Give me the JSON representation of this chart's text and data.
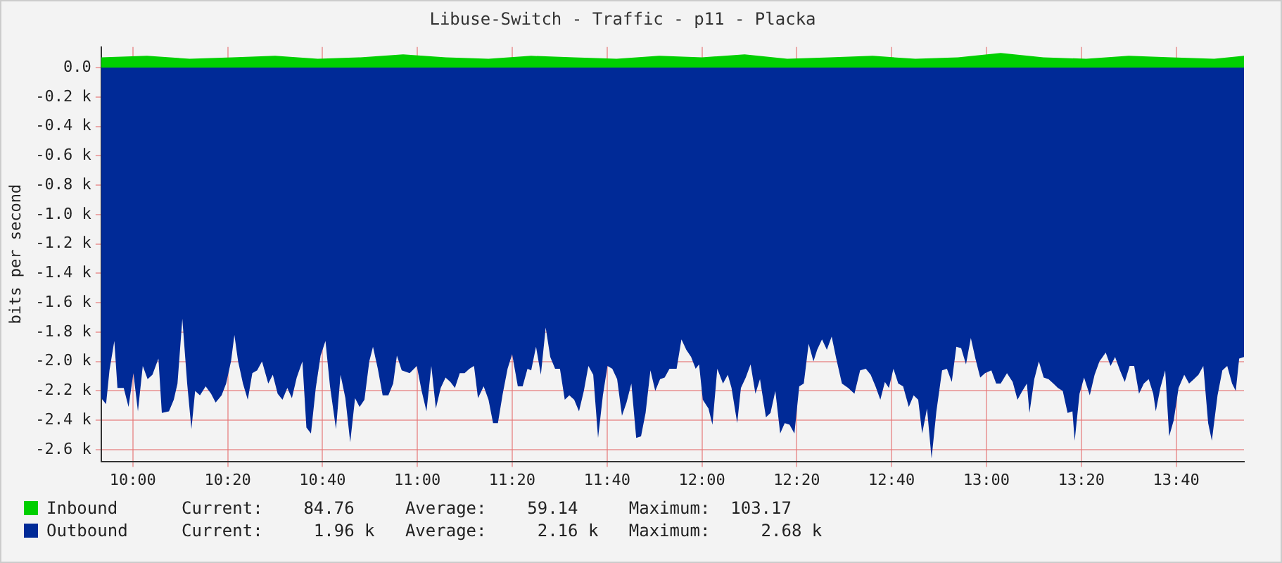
{
  "chart_data": {
    "type": "area",
    "title": "Libuse-Switch - Traffic - p11 - Placka",
    "ylabel": "bits per second",
    "legend": "bottom",
    "grid": true,
    "marker": "none",
    "xlim": [
      9.889,
      13.905
    ],
    "xticks": [
      {
        "value": 10,
        "label": "10:00"
      },
      {
        "value": 10.3333,
        "label": "10:20"
      },
      {
        "value": 10.6667,
        "label": "10:40"
      },
      {
        "value": 11,
        "label": "11:00"
      },
      {
        "value": 11.3333,
        "label": "11:20"
      },
      {
        "value": 11.6667,
        "label": "11:40"
      },
      {
        "value": 12,
        "label": "12:00"
      },
      {
        "value": 12.3333,
        "label": "12:20"
      },
      {
        "value": 12.6667,
        "label": "12:40"
      },
      {
        "value": 13,
        "label": "13:00"
      },
      {
        "value": 13.3333,
        "label": "13:20"
      },
      {
        "value": 13.6667,
        "label": "13:40"
      }
    ],
    "ylim": [
      -2.68,
      0.14
    ],
    "yticks": [
      {
        "value": 0,
        "label": "0.0"
      },
      {
        "value": -0.2,
        "label": "-0.2 k"
      },
      {
        "value": -0.4,
        "label": "-0.4 k"
      },
      {
        "value": -0.6,
        "label": "-0.6 k"
      },
      {
        "value": -0.8,
        "label": "-0.8 k"
      },
      {
        "value": -1,
        "label": "-1.0 k"
      },
      {
        "value": -1.2,
        "label": "-1.2 k"
      },
      {
        "value": -1.4,
        "label": "-1.4 k"
      },
      {
        "value": -1.6,
        "label": "-1.6 k"
      },
      {
        "value": -1.8,
        "label": "-1.8 k"
      },
      {
        "value": -2,
        "label": "-2.0 k"
      },
      {
        "value": -2.2,
        "label": "-2.2 k"
      },
      {
        "value": -2.4,
        "label": "-2.4 k"
      },
      {
        "value": -2.6,
        "label": "-2.6 k"
      }
    ],
    "annotations": [
      "Current:    84.76     Average:    59.14     Maximum:  103.17",
      "Current:     1.96 k   Average:     2.16 k   Maximum:     2.68 k"
    ],
    "series": [
      {
        "name": "Inbound",
        "color": "#00cf00",
        "x": [
          9.889,
          10.05,
          10.2,
          10.35,
          10.5,
          10.65,
          10.8,
          10.95,
          11.1,
          11.25,
          11.4,
          11.55,
          11.7,
          11.85,
          12.0,
          12.15,
          12.3,
          12.45,
          12.6,
          12.75,
          12.9,
          13.05,
          13.2,
          13.35,
          13.5,
          13.65,
          13.8,
          13.905
        ],
        "values": [
          0.07,
          0.08,
          0.06,
          0.07,
          0.08,
          0.06,
          0.07,
          0.09,
          0.07,
          0.06,
          0.08,
          0.07,
          0.06,
          0.08,
          0.07,
          0.09,
          0.06,
          0.07,
          0.08,
          0.06,
          0.07,
          0.1,
          0.07,
          0.06,
          0.08,
          0.07,
          0.06,
          0.08
        ]
      },
      {
        "name": "Outbound",
        "color": "#002a97",
        "x": [
          9.889,
          9.906,
          9.918,
          9.935,
          9.946,
          9.968,
          9.985,
          10.002,
          10.018,
          10.035,
          10.052,
          10.069,
          10.09,
          10.102,
          10.127,
          10.144,
          10.157,
          10.174,
          10.191,
          10.206,
          10.219,
          10.236,
          10.256,
          10.275,
          10.291,
          10.312,
          10.328,
          10.345,
          10.357,
          10.37,
          10.387,
          10.404,
          10.42,
          10.437,
          10.454,
          10.476,
          10.492,
          10.509,
          10.526,
          10.543,
          10.559,
          10.576,
          10.596,
          10.61,
          10.626,
          10.643,
          10.66,
          10.677,
          10.693,
          10.714,
          10.73,
          10.747,
          10.764,
          10.781,
          10.797,
          10.814,
          10.831,
          10.844,
          10.861,
          10.878,
          10.898,
          10.915,
          10.928,
          10.945,
          10.973,
          10.998,
          11.015,
          11.032,
          11.049,
          11.065,
          11.082,
          11.099,
          11.116,
          11.132,
          11.149,
          11.166,
          11.183,
          11.199,
          11.213,
          11.233,
          11.25,
          11.266,
          11.283,
          11.3,
          11.317,
          11.333,
          11.353,
          11.37,
          11.387,
          11.4,
          11.417,
          11.434,
          11.451,
          11.467,
          11.484,
          11.501,
          11.518,
          11.534,
          11.551,
          11.568,
          11.585,
          11.601,
          11.618,
          11.635,
          11.652,
          11.668,
          11.685,
          11.702,
          11.719,
          11.735,
          11.752,
          11.769,
          11.786,
          11.802,
          11.819,
          11.836,
          11.853,
          11.869,
          11.886,
          11.911,
          11.928,
          11.945,
          11.962,
          11.978,
          11.99,
          12.003,
          12.023,
          12.037,
          12.054,
          12.074,
          12.091,
          12.104,
          12.124,
          12.137,
          12.154,
          12.171,
          12.188,
          12.204,
          12.225,
          12.241,
          12.258,
          12.275,
          12.291,
          12.308,
          12.325,
          12.342,
          12.358,
          12.375,
          12.392,
          12.405,
          12.422,
          12.439,
          12.456,
          12.472,
          12.492,
          12.514,
          12.536,
          12.556,
          12.576,
          12.593,
          12.61,
          12.627,
          12.643,
          12.657,
          12.673,
          12.69,
          12.707,
          12.727,
          12.744,
          12.76,
          12.774,
          12.791,
          12.807,
          12.824,
          12.844,
          12.861,
          12.878,
          12.894,
          12.911,
          12.928,
          12.945,
          12.961,
          12.978,
          12.995,
          13.017,
          13.034,
          13.05,
          13.072,
          13.092,
          13.109,
          13.126,
          13.142,
          13.151,
          13.168,
          13.184,
          13.201,
          13.218,
          13.235,
          13.251,
          13.268,
          13.285,
          13.302,
          13.31,
          13.327,
          13.343,
          13.363,
          13.38,
          13.397,
          13.419,
          13.436,
          13.452,
          13.469,
          13.486,
          13.503,
          13.519,
          13.536,
          13.553,
          13.57,
          13.586,
          13.595,
          13.611,
          13.628,
          13.642,
          13.658,
          13.675,
          13.695,
          13.712,
          13.729,
          13.745,
          13.762,
          13.779,
          13.792,
          13.812,
          13.829,
          13.846,
          13.863,
          13.876,
          13.888,
          13.905
        ],
        "values": [
          -2.25,
          -2.29,
          -2.06,
          -1.86,
          -2.18,
          -2.18,
          -2.31,
          -2.08,
          -2.34,
          -2.03,
          -2.12,
          -2.09,
          -1.98,
          -2.35,
          -2.34,
          -2.26,
          -2.15,
          -1.71,
          -2.15,
          -2.46,
          -2.2,
          -2.23,
          -2.17,
          -2.22,
          -2.28,
          -2.23,
          -2.15,
          -2.0,
          -1.82,
          -2.0,
          -2.15,
          -2.26,
          -2.08,
          -2.06,
          -2.0,
          -2.15,
          -2.09,
          -2.22,
          -2.26,
          -2.18,
          -2.25,
          -2.11,
          -2.0,
          -2.45,
          -2.49,
          -2.18,
          -1.96,
          -1.86,
          -2.17,
          -2.46,
          -2.09,
          -2.25,
          -2.55,
          -2.25,
          -2.31,
          -2.26,
          -2.0,
          -1.9,
          -2.05,
          -2.23,
          -2.23,
          -2.15,
          -1.96,
          -2.06,
          -2.08,
          -2.03,
          -2.2,
          -2.34,
          -2.03,
          -2.32,
          -2.18,
          -2.11,
          -2.14,
          -2.18,
          -2.08,
          -2.08,
          -2.05,
          -2.03,
          -2.25,
          -2.17,
          -2.26,
          -2.42,
          -2.42,
          -2.22,
          -2.05,
          -1.95,
          -2.17,
          -2.17,
          -2.05,
          -2.06,
          -1.9,
          -2.09,
          -1.77,
          -1.97,
          -2.05,
          -2.05,
          -2.26,
          -2.23,
          -2.26,
          -2.34,
          -2.2,
          -2.03,
          -2.09,
          -2.52,
          -2.23,
          -2.03,
          -2.05,
          -2.12,
          -2.37,
          -2.28,
          -2.15,
          -2.52,
          -2.51,
          -2.35,
          -2.06,
          -2.2,
          -2.12,
          -2.11,
          -2.05,
          -2.05,
          -1.85,
          -1.92,
          -1.97,
          -2.05,
          -2.02,
          -2.26,
          -2.32,
          -2.43,
          -2.05,
          -2.15,
          -2.09,
          -2.18,
          -2.42,
          -2.18,
          -2.11,
          -2.02,
          -2.22,
          -2.12,
          -2.38,
          -2.35,
          -2.2,
          -2.49,
          -2.42,
          -2.43,
          -2.49,
          -2.17,
          -2.15,
          -1.88,
          -2.0,
          -1.92,
          -1.85,
          -1.92,
          -1.83,
          -1.98,
          -2.15,
          -2.18,
          -2.22,
          -2.06,
          -2.05,
          -2.09,
          -2.17,
          -2.26,
          -2.14,
          -2.18,
          -2.05,
          -2.15,
          -2.17,
          -2.31,
          -2.23,
          -2.26,
          -2.49,
          -2.32,
          -2.66,
          -2.34,
          -2.06,
          -2.05,
          -2.14,
          -1.9,
          -1.91,
          -2.02,
          -1.84,
          -1.98,
          -2.11,
          -2.08,
          -2.06,
          -2.15,
          -2.15,
          -2.08,
          -2.14,
          -2.26,
          -2.2,
          -2.15,
          -2.35,
          -2.12,
          -2.0,
          -2.11,
          -2.12,
          -2.15,
          -2.18,
          -2.2,
          -2.35,
          -2.34,
          -2.54,
          -2.22,
          -2.11,
          -2.23,
          -2.09,
          -2.0,
          -1.94,
          -2.03,
          -1.97,
          -2.06,
          -2.14,
          -2.03,
          -2.03,
          -2.22,
          -2.15,
          -2.12,
          -2.22,
          -2.34,
          -2.18,
          -2.06,
          -2.51,
          -2.4,
          -2.18,
          -2.09,
          -2.15,
          -2.12,
          -2.09,
          -2.03,
          -2.42,
          -2.54,
          -2.23,
          -2.06,
          -2.03,
          -2.15,
          -2.2,
          -1.98,
          -1.97
        ]
      }
    ]
  }
}
